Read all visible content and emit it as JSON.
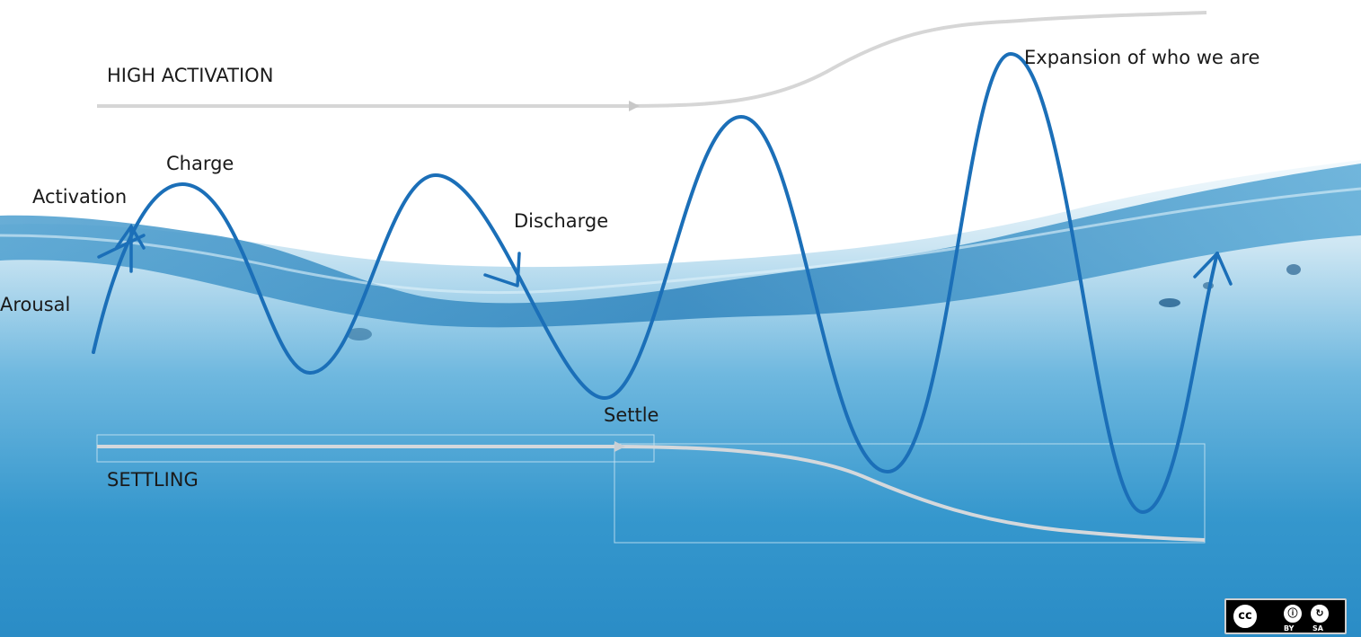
{
  "labels": {
    "high_activation": "HIGH ACTIVATION",
    "settling": "SETTLING",
    "charge": "Charge",
    "activation": "Activation",
    "arousal": "Arousal",
    "discharge": "Discharge",
    "settle": "Settle",
    "expansion": "Expansion of who we are"
  },
  "license": {
    "cc": "cc",
    "by": "BY",
    "sa": "SA"
  },
  "colors": {
    "wave": "#1b6fb8",
    "guide_line": "#d6d6d6",
    "water_deep": "#2e8fc7",
    "water_light": "#eaf5fb"
  }
}
